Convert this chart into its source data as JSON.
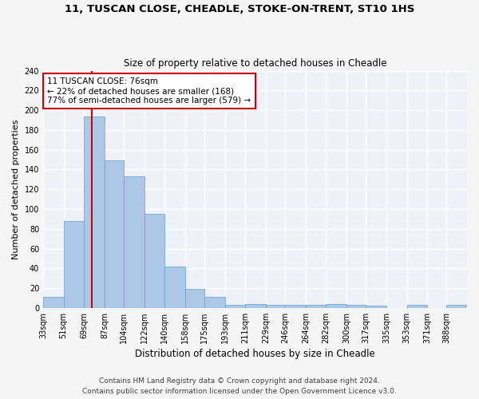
{
  "title1": "11, TUSCAN CLOSE, CHEADLE, STOKE-ON-TRENT, ST10 1HS",
  "title2": "Size of property relative to detached houses in Cheadle",
  "xlabel": "Distribution of detached houses by size in Cheadle",
  "ylabel": "Number of detached properties",
  "bar_labels": [
    "33sqm",
    "51sqm",
    "69sqm",
    "87sqm",
    "104sqm",
    "122sqm",
    "140sqm",
    "158sqm",
    "175sqm",
    "193sqm",
    "211sqm",
    "229sqm",
    "246sqm",
    "264sqm",
    "282sqm",
    "300sqm",
    "317sqm",
    "335sqm",
    "353sqm",
    "371sqm",
    "388sqm"
  ],
  "bins": [
    33,
    51,
    69,
    87,
    104,
    122,
    140,
    158,
    175,
    193,
    211,
    229,
    246,
    264,
    282,
    300,
    317,
    335,
    353,
    371,
    388,
    406
  ],
  "hist_values": [
    11,
    88,
    194,
    149,
    133,
    95,
    42,
    19,
    11,
    3,
    4,
    3,
    3,
    3,
    4,
    3,
    2,
    0,
    3,
    0,
    3
  ],
  "bar_color": "#adc8e6",
  "bar_edge_color": "#5a9fd4",
  "red_line_x": 76,
  "annotation_line1": "11 TUSCAN CLOSE: 76sqm",
  "annotation_line2": "← 22% of detached houses are smaller (168)",
  "annotation_line3": "77% of semi-detached houses are larger (579) →",
  "annotation_box_color": "#ffffff",
  "annotation_box_edge": "#cc0000",
  "footer1": "Contains HM Land Registry data © Crown copyright and database right 2024.",
  "footer2": "Contains public sector information licensed under the Open Government Licence v3.0.",
  "ylim": [
    0,
    240
  ],
  "yticks": [
    0,
    20,
    40,
    60,
    80,
    100,
    120,
    140,
    160,
    180,
    200,
    220,
    240
  ],
  "bg_color": "#eef2f8",
  "grid_color": "#ffffff",
  "title1_fontsize": 9.5,
  "title2_fontsize": 8.5,
  "axis_label_fontsize": 8,
  "tick_fontsize": 7,
  "annotation_fontsize": 7.5,
  "footer_fontsize": 6.5
}
